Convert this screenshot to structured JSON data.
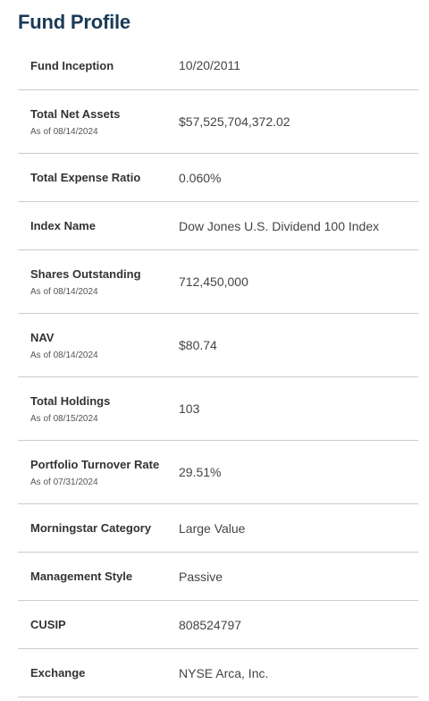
{
  "page": {
    "title": "Fund Profile"
  },
  "rows": [
    {
      "label": "Fund Inception",
      "asof": "",
      "value": "10/20/2011"
    },
    {
      "label": "Total Net Assets",
      "asof": "As of 08/14/2024",
      "value": "$57,525,704,372.02"
    },
    {
      "label": "Total Expense Ratio",
      "asof": "",
      "value": "0.060%"
    },
    {
      "label": "Index Name",
      "asof": "",
      "value": "Dow Jones U.S. Dividend 100 Index"
    },
    {
      "label": "Shares Outstanding",
      "asof": "As of 08/14/2024",
      "value": "712,450,000"
    },
    {
      "label": "NAV",
      "asof": "As of 08/14/2024",
      "value": "$80.74"
    },
    {
      "label": "Total Holdings",
      "asof": "As of 08/15/2024",
      "value": "103"
    },
    {
      "label": "Portfolio Turnover Rate",
      "asof": "As of 07/31/2024",
      "value": "29.51%"
    },
    {
      "label": "Morningstar Category",
      "asof": "",
      "value": "Large Value"
    },
    {
      "label": "Management Style",
      "asof": "",
      "value": "Passive"
    },
    {
      "label": "CUSIP",
      "asof": "",
      "value": "808524797"
    },
    {
      "label": "Exchange",
      "asof": "",
      "value": "NYSE Arca, Inc."
    }
  ]
}
